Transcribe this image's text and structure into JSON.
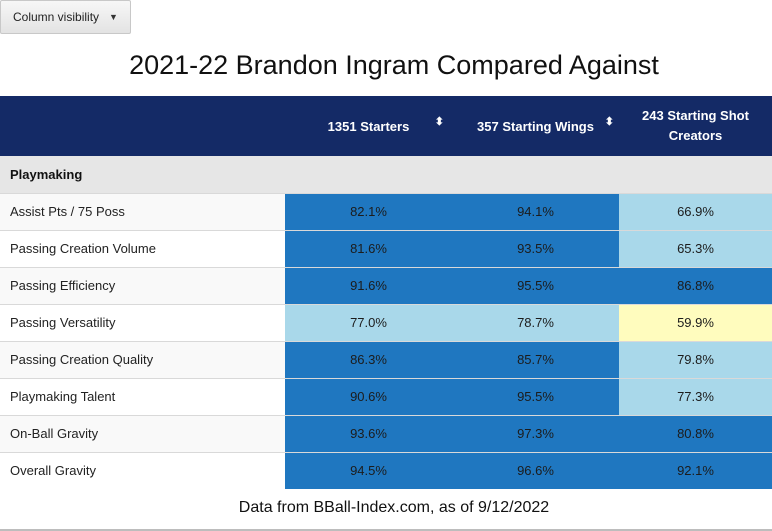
{
  "toolbar": {
    "column_visibility_label": "Column visibility",
    "caret_icon": "▼"
  },
  "title": "2021-22 Brandon Ingram Compared Against",
  "table": {
    "headers": [
      {
        "label": ""
      },
      {
        "label": "1351 Starters"
      },
      {
        "label": "357 Starting Wings"
      },
      {
        "label": "243 Starting Shot Creators"
      }
    ],
    "sort_icon": "⬍",
    "section": "Playmaking",
    "rows": [
      {
        "metric": "Assist Pts / 75 Poss",
        "values": [
          "82.1%",
          "94.1%",
          "66.9%"
        ],
        "shades": [
          "dark",
          "dark",
          "light"
        ]
      },
      {
        "metric": "Passing Creation Volume",
        "values": [
          "81.6%",
          "93.5%",
          "65.3%"
        ],
        "shades": [
          "dark",
          "dark",
          "light"
        ]
      },
      {
        "metric": "Passing Efficiency",
        "values": [
          "91.6%",
          "95.5%",
          "86.8%"
        ],
        "shades": [
          "dark",
          "dark",
          "dark"
        ]
      },
      {
        "metric": "Passing Versatility",
        "values": [
          "77.0%",
          "78.7%",
          "59.9%"
        ],
        "shades": [
          "light",
          "light",
          "yellow"
        ]
      },
      {
        "metric": "Passing Creation Quality",
        "values": [
          "86.3%",
          "85.7%",
          "79.8%"
        ],
        "shades": [
          "dark",
          "dark",
          "light"
        ]
      },
      {
        "metric": "Playmaking Talent",
        "values": [
          "90.6%",
          "95.5%",
          "77.3%"
        ],
        "shades": [
          "dark",
          "dark",
          "light"
        ]
      },
      {
        "metric": "On-Ball Gravity",
        "values": [
          "93.6%",
          "97.3%",
          "80.8%"
        ],
        "shades": [
          "dark",
          "dark",
          "dark"
        ]
      },
      {
        "metric": "Overall Gravity",
        "values": [
          "94.5%",
          "96.6%",
          "92.1%"
        ],
        "shades": [
          "dark",
          "dark",
          "dark"
        ]
      }
    ]
  },
  "colors": {
    "header_bg": "#142a66",
    "high_percentile": "#1f77c0",
    "mid_percentile": "#a9d8ea",
    "low_percentile": "#fffcbe"
  },
  "footer": "Data from BBall-Index.com, as of 9/12/2022"
}
